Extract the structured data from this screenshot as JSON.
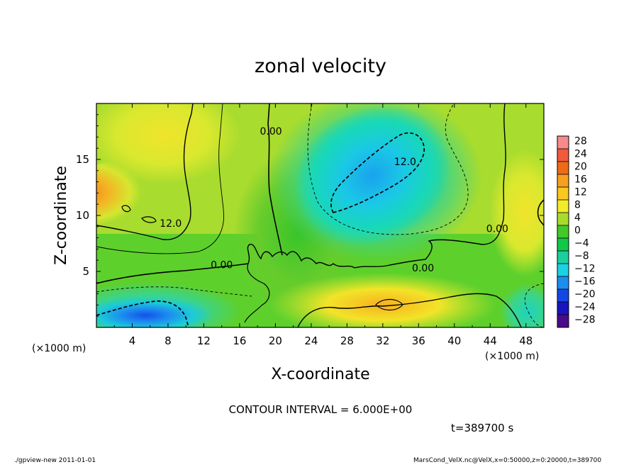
{
  "figure": {
    "title": "zonal velocity",
    "x_label": "X-coordinate",
    "y_label": "Z-coordinate",
    "x_scale_label_left": "(×1000 m)",
    "x_scale_label_right": "(×1000 m)",
    "contour_interval_text": "CONTOUR INTERVAL = 6.000E+00",
    "time_text": "t=389700 s",
    "footer_left": "./gpview-new  2011-01-01",
    "footer_right": "MarsCond_VelX.nc@VelX,x=0:50000,z=0:20000,t=389700"
  },
  "chart_data": {
    "type": "heatmap",
    "title": "zonal velocity",
    "xlabel": "X-coordinate",
    "ylabel": "Z-coordinate",
    "x_unit_note": "(×1000 m)",
    "xlim": [
      0,
      50
    ],
    "ylim": [
      0,
      20
    ],
    "x_ticks": [
      4,
      8,
      12,
      16,
      20,
      24,
      28,
      32,
      36,
      40,
      44,
      48
    ],
    "y_ticks": [
      5,
      10,
      15
    ],
    "contour_interval": 6.0,
    "contour_labels": [
      {
        "text": "12.0",
        "x": 8.3,
        "z": 9.0
      },
      {
        "text": "0.00",
        "x": 19.5,
        "z": 17.2
      },
      {
        "text": "12.0",
        "x": 34.5,
        "z": 14.5
      },
      {
        "text": "0.00",
        "x": 44.8,
        "z": 8.5
      },
      {
        "text": "0.00",
        "x": 14.0,
        "z": 5.3
      },
      {
        "text": "0.00",
        "x": 36.5,
        "z": 5.0
      }
    ],
    "colorbar": {
      "labels": [
        "28",
        "24",
        "20",
        "16",
        "12",
        "8",
        "4",
        "0",
        "-4",
        "-8",
        "-12",
        "-16",
        "-20",
        "-24",
        "-28"
      ],
      "colors": [
        "#f78a8a",
        "#f25a3c",
        "#f06a16",
        "#f5a020",
        "#fac81e",
        "#f2ec28",
        "#a8dc2c",
        "#44c82a",
        "#12c848",
        "#1ccfa0",
        "#1ad2e4",
        "#1c8ef0",
        "#1448e6",
        "#1a14c0",
        "#4a0a8a"
      ]
    },
    "field_features": [
      {
        "description_value": 17,
        "x": 5.5,
        "z": 10.0,
        "rx": 4.5,
        "rz": 2.0
      },
      {
        "description_value": -14,
        "x": 30.5,
        "z": 13.5,
        "rx": 4.5,
        "rz": 3.0
      },
      {
        "description_value": -16,
        "x": 6.0,
        "z": 1.5,
        "rx": 4.0,
        "rz": 1.2
      }
    ]
  }
}
